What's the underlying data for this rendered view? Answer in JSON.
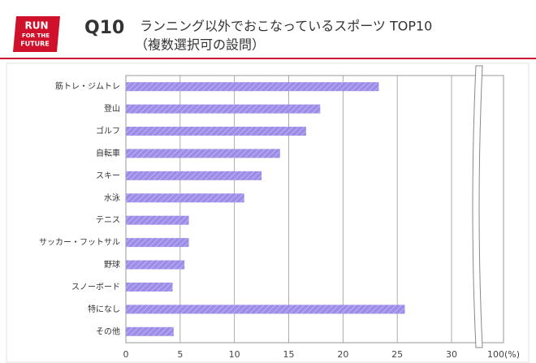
{
  "chart_data": {
    "type": "barh",
    "logo_text": [
      "RUN",
      "FOR THE",
      "FUTURE"
    ],
    "question": "Q10",
    "title": "ランニング以外でおこなっているスポーツ TOP10",
    "subtitle": "（複数選択可の設問）",
    "categories": [
      "筋トレ・ジムトレ",
      "登山",
      "ゴルフ",
      "自転車",
      "スキー",
      "水泳",
      "テニス",
      "サッカー・フットサル",
      "野球",
      "スノーボード",
      "特になし",
      "その他"
    ],
    "values": [
      23.3,
      17.9,
      16.6,
      14.2,
      12.5,
      10.9,
      5.8,
      5.8,
      5.4,
      4.3,
      25.7,
      4.4
    ],
    "color": "#9d8ce8",
    "xlim": [
      0,
      100
    ],
    "xticks": [
      0,
      5,
      10,
      15,
      20,
      25,
      30,
      {
        "value": 100,
        "label": "100(%)"
      }
    ],
    "axis_break": true,
    "grid": true
  }
}
